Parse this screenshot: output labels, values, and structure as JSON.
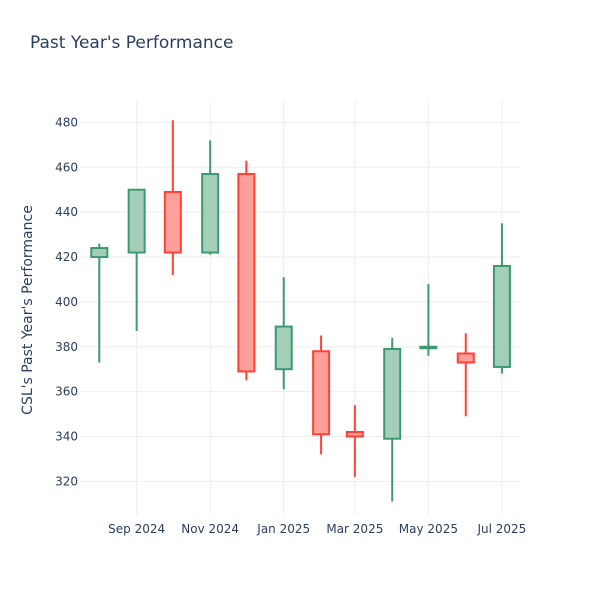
{
  "chart_data": {
    "type": "candlestick",
    "title": "Past Year's Performance",
    "xlabel": "",
    "ylabel": "CSL's Past Year's Performance",
    "ylim": [
      305,
      490
    ],
    "yticks": [
      320,
      340,
      360,
      380,
      400,
      420,
      440,
      460,
      480
    ],
    "x_tick_labels": [
      "Sep 2024",
      "Nov 2024",
      "Jan 2025",
      "Mar 2025",
      "May 2025",
      "Jul 2025"
    ],
    "x_tick_dates": [
      "2024-09-01",
      "2024-11-01",
      "2025-01-01",
      "2025-03-01",
      "2025-05-01",
      "2025-07-01"
    ],
    "x_range": [
      "2024-07-16",
      "2025-07-16"
    ],
    "grid": true,
    "legend": "none",
    "colors": {
      "increasing_line": "#3d9970",
      "increasing_fill": "#a3cfb9",
      "decreasing_line": "#ff4136",
      "decreasing_fill": "#ff9f9a",
      "grid": "#eeeeee",
      "text": "#2a3f5f"
    },
    "candles": [
      {
        "date": "2024-08-01",
        "open": 420,
        "high": 426,
        "low": 373,
        "close": 424
      },
      {
        "date": "2024-09-01",
        "open": 422,
        "high": 450,
        "low": 387,
        "close": 450
      },
      {
        "date": "2024-10-01",
        "open": 449,
        "high": 481,
        "low": 412,
        "close": 422
      },
      {
        "date": "2024-11-01",
        "open": 422,
        "high": 472,
        "low": 421,
        "close": 457
      },
      {
        "date": "2024-12-01",
        "open": 457,
        "high": 463,
        "low": 365,
        "close": 369
      },
      {
        "date": "2025-01-01",
        "open": 370,
        "high": 411,
        "low": 361,
        "close": 389
      },
      {
        "date": "2025-02-01",
        "open": 378,
        "high": 385,
        "low": 332,
        "close": 341
      },
      {
        "date": "2025-03-01",
        "open": 342,
        "high": 354,
        "low": 322,
        "close": 340
      },
      {
        "date": "2025-04-01",
        "open": 339,
        "high": 384,
        "low": 311,
        "close": 379
      },
      {
        "date": "2025-05-01",
        "open": 380,
        "high": 408,
        "low": 376,
        "close": 380
      },
      {
        "date": "2025-06-01",
        "open": 377,
        "high": 386,
        "low": 349,
        "close": 373
      },
      {
        "date": "2025-07-01",
        "open": 371,
        "high": 435,
        "low": 368,
        "close": 416
      }
    ]
  }
}
